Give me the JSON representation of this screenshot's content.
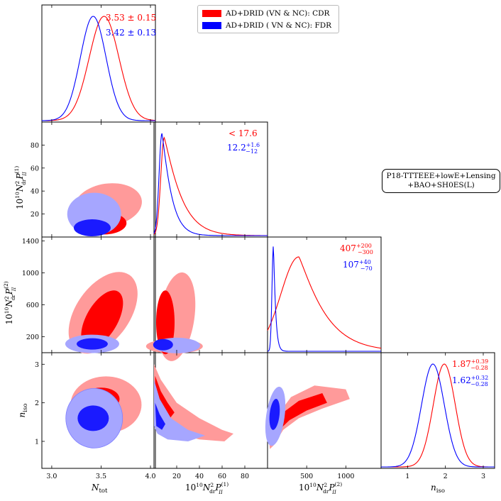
{
  "chart_data": {
    "type": "corner-triangle-plot",
    "legend": [
      {
        "label": "AD+DRID (VN & NC): CDR",
        "color": "#ff0000"
      },
      {
        "label": "AD+DRID ( VN & NC): FDR",
        "color": "#0000ff"
      }
    ],
    "dataset_box": {
      "line1": "P18-TTTEEE+lowE+Lensing",
      "line2": "+BAO+SH0ES(L)"
    },
    "parameters": [
      {
        "key": "Ntot",
        "label": "N_tot",
        "range": [
          2.9,
          4.05
        ],
        "ticks": [
          3.0,
          3.5,
          4.0
        ],
        "tick_labels": [
          "3.0",
          "3.5",
          "4.0"
        ]
      },
      {
        "key": "P1",
        "label": "10^10 N_dr^2 P_II^(1)",
        "range": [
          0,
          100
        ],
        "ticks": [
          20,
          40,
          60,
          80
        ],
        "tick_labels": [
          "20",
          "40",
          "60",
          "80"
        ]
      },
      {
        "key": "P2",
        "label": "10^10 N_dr^2 P_II^(2)",
        "range": [
          0,
          1450
        ],
        "ticks": [
          200,
          600,
          1000,
          1400
        ],
        "tick_labels": [
          "200",
          "600",
          "1000",
          "1400"
        ],
        "bottom_ticks": [
          500,
          1000
        ],
        "bottom_tick_labels": [
          "500",
          "1000"
        ]
      },
      {
        "key": "niso",
        "label": "n_iso",
        "range": [
          0.3,
          3.3
        ],
        "ticks": [
          1,
          2,
          3
        ],
        "tick_labels": [
          "1",
          "2",
          "3"
        ]
      }
    ],
    "axis_labels": {
      "Ntot": "N",
      "Ntot_sub": "tot",
      "niso": "n",
      "niso_sub": "iso",
      "P_prefix": "10",
      "P_exp": "10",
      "P_N": "N",
      "P_sub": "dr",
      "P_sq": "2",
      "P_sym": "P",
      "P_II": "II",
      "P_sup1": "(1)",
      "P_sup2": "(2)"
    },
    "marginals": {
      "Ntot": {
        "CDR": {
          "mean": 3.53,
          "sigma": 0.15,
          "label": "3.53 ± 0.15"
        },
        "FDR": {
          "mean": 3.42,
          "sigma": 0.13,
          "label": "3.42 ± 0.13"
        }
      },
      "P1": {
        "CDR": {
          "label": "< 17.6",
          "peak": 9,
          "shape": "skewed"
        },
        "FDR": {
          "value": "12.2",
          "plus": "+1.6",
          "minus": "−12",
          "peak": 7,
          "shape": "skewed"
        }
      },
      "P2": {
        "CDR": {
          "value": "407",
          "plus": "+200",
          "minus": "−300",
          "peak": 400,
          "shape": "broad"
        },
        "FDR": {
          "value": "107",
          "plus": "+40",
          "minus": "−70",
          "peak": 75,
          "shape": "narrow"
        }
      },
      "niso": {
        "CDR": {
          "value": "1.87",
          "plus": "+0.39",
          "minus": "−0.28",
          "mean": 1.97,
          "sigma": 0.29
        },
        "FDR": {
          "value": "1.62",
          "plus": "+0.32",
          "minus": "−0.28",
          "mean": 1.67,
          "sigma": 0.3
        }
      }
    },
    "colors": {
      "cdr": "#ff0000",
      "fdr": "#0000ff",
      "cdr_outer": "#ff9a9a",
      "cdr_inner": "#ff0000",
      "fdr_outer": "#a6a6ff",
      "fdr_inner": "#1a1aff"
    }
  }
}
